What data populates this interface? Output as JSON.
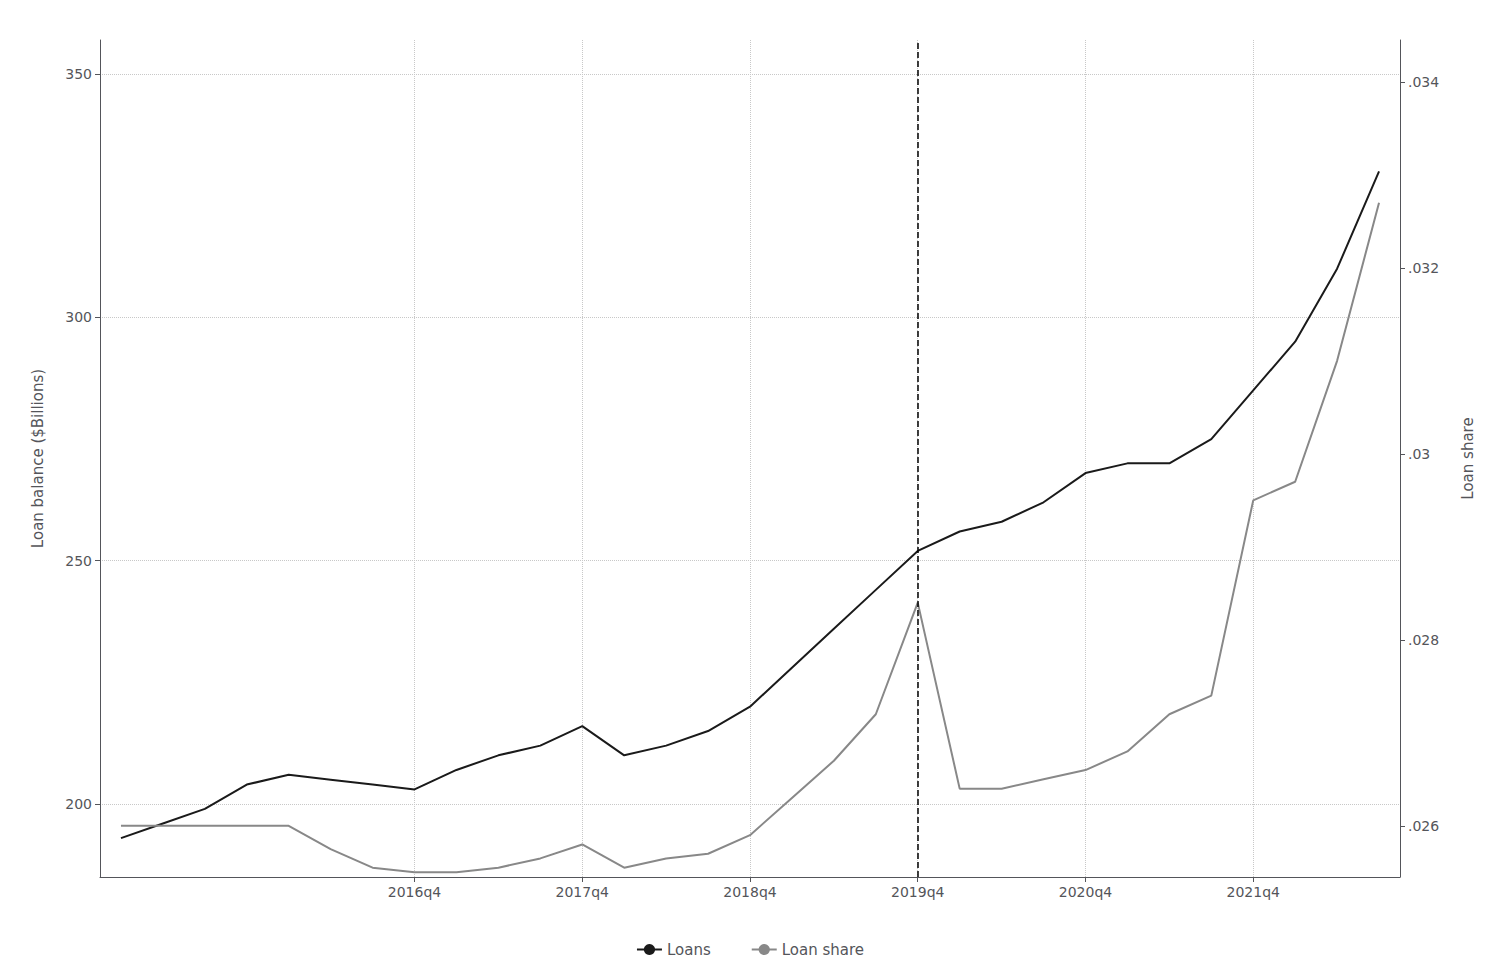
{
  "chart_data": {
    "type": "line",
    "categories": [
      null,
      null,
      null,
      null,
      null,
      null,
      null,
      "2016q4",
      null,
      null,
      null,
      "2017q4",
      null,
      null,
      null,
      "2018q4",
      null,
      null,
      null,
      "2019q4",
      null,
      null,
      null,
      "2020q4",
      null,
      null,
      null,
      "2021q4",
      null,
      null,
      null
    ],
    "series": [
      {
        "name": "Loans",
        "color": "#1a1a1a",
        "values": [
          193,
          196,
          199,
          204,
          206,
          205,
          204,
          203,
          207,
          210,
          212,
          216,
          210,
          212,
          215,
          220,
          228,
          236,
          244,
          252,
          256,
          258,
          262,
          268,
          270,
          270,
          275,
          285,
          295,
          310,
          330
        ]
      },
      {
        "name": "Loan share",
        "color": "#888888",
        "axis": "y2",
        "values": [
          0.026,
          0.026,
          0.026,
          0.026,
          0.026,
          0.02575,
          0.02555,
          0.0255,
          0.0255,
          0.02555,
          0.02565,
          0.0258,
          0.02555,
          0.02565,
          0.0257,
          0.0259,
          0.0263,
          0.0267,
          0.0272,
          0.0284,
          0.0264,
          0.0264,
          0.0265,
          0.0266,
          0.0268,
          0.0272,
          0.0274,
          0.0295,
          0.0297,
          0.031,
          0.0327
        ]
      }
    ],
    "ylabel": "Loan balance ($Billions)",
    "y2label": "Loan share",
    "ylim": [
      185,
      357
    ],
    "yticks": [
      200,
      250,
      300,
      350
    ],
    "y2lim": [
      0.02545,
      0.03445
    ],
    "y2ticks": [
      {
        "value": 0.026,
        "label": ".026"
      },
      {
        "value": 0.028,
        "label": ".028"
      },
      {
        "value": 0.03,
        "label": ".03"
      },
      {
        "value": 0.032,
        "label": ".032"
      },
      {
        "value": 0.034,
        "label": ".034"
      }
    ],
    "vlines": [
      {
        "x": "2019q4",
        "line_style": "dashed",
        "color": "#000000"
      }
    ],
    "grid": true,
    "legend": "bottom"
  }
}
